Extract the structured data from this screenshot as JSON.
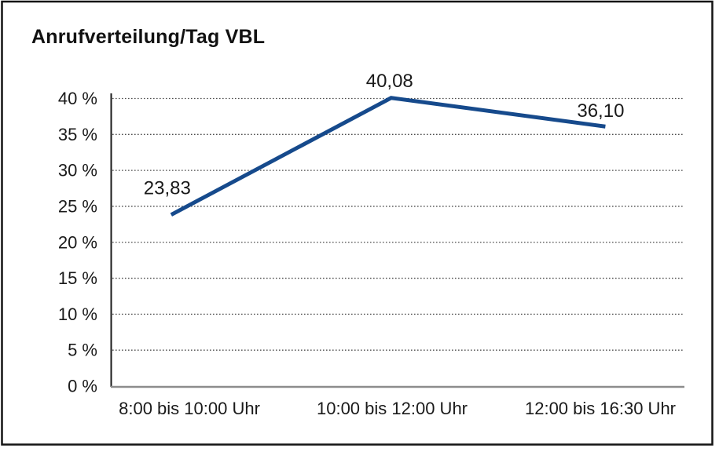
{
  "title": "Anrufverteilung/Tag VBL",
  "chart_data": {
    "type": "line",
    "title": "Anrufverteilung/Tag VBL",
    "categories": [
      "8:00 bis 10:00 Uhr",
      "10:00 bis 12:00 Uhr",
      "12:00 bis 16:30 Uhr"
    ],
    "values": [
      23.83,
      40.08,
      36.1
    ],
    "point_labels": [
      "23,83",
      "40,08",
      "36,10"
    ],
    "xlabel": "",
    "ylabel": "",
    "ylim": [
      0,
      40
    ],
    "y_tick_step": 5,
    "y_tick_labels": [
      "0 %",
      "5 %",
      "10 %",
      "15 %",
      "20 %",
      "25 %",
      "30 %",
      "35 %",
      "40 %"
    ],
    "grid": "horizontal-dotted",
    "legend": "none",
    "markers": "none"
  },
  "colors": {
    "line": "#164a8c",
    "grid_dots": "#4d4d4d",
    "axis": "#1a1a1a",
    "baseline": "#8c8c8c",
    "frame_border": "#141414",
    "text": "#1a1a1a",
    "background": "#ffffff"
  }
}
